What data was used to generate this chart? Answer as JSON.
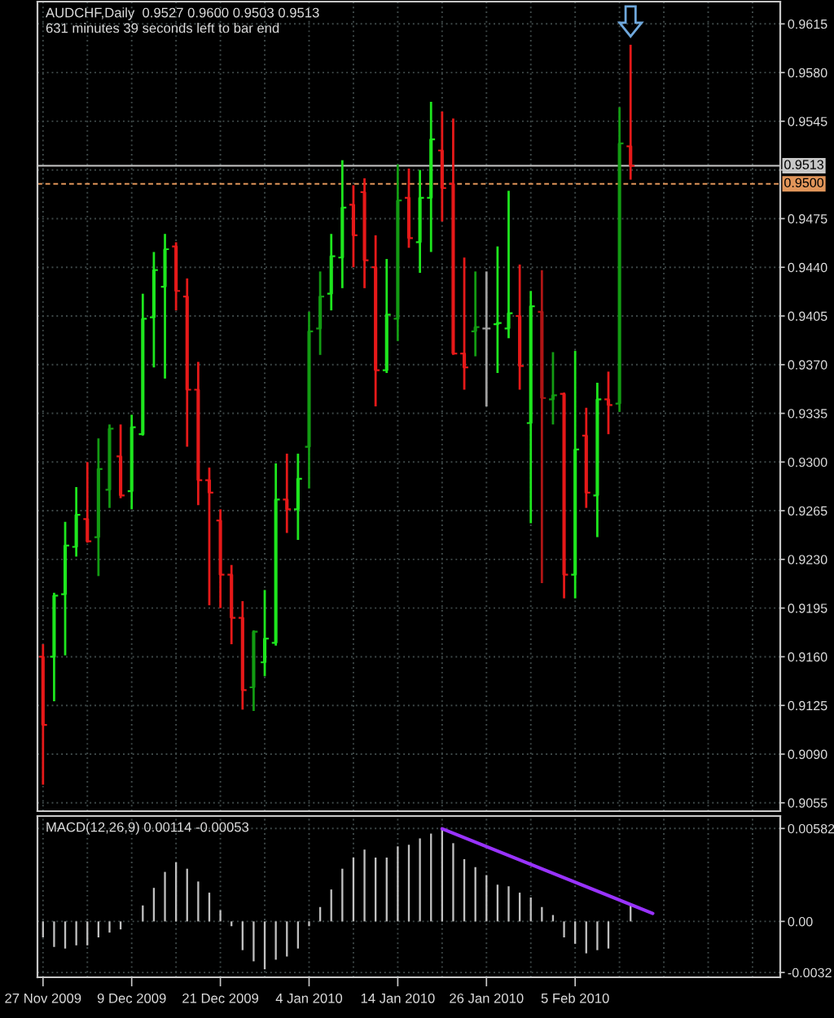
{
  "chart_data": [
    {
      "type": "candlestick",
      "title": "AUDCHF,Daily  0.9527 0.9600 0.9503 0.9513",
      "subtitle": "631 minutes 39 seconds left to bar end",
      "categories": [
        null,
        null,
        null,
        null,
        null,
        null,
        null,
        null,
        null,
        null,
        null,
        null,
        null,
        null,
        null,
        null,
        null,
        null,
        null,
        null,
        null,
        null,
        null,
        null,
        null,
        null,
        null,
        null,
        null,
        null,
        null,
        null,
        null,
        null,
        null,
        null,
        null,
        null,
        null,
        null,
        null,
        null,
        null,
        null,
        null,
        null,
        null,
        null,
        null,
        null,
        null,
        null,
        null,
        null,
        null,
        null,
        null,
        null,
        null,
        null,
        null,
        null,
        null,
        null,
        null,
        null,
        null
      ],
      "ohlc": [
        [
          0.916,
          0.9169,
          0.9068,
          0.9111
        ],
        [
          0.916,
          0.9206,
          0.9128,
          0.9204
        ],
        [
          0.9205,
          0.9257,
          0.9161,
          0.924
        ],
        [
          0.9239,
          0.9282,
          0.9232,
          0.9262
        ],
        [
          0.9259,
          0.93,
          0.9242,
          0.9243
        ],
        [
          0.9246,
          0.9317,
          0.9218,
          0.9295
        ],
        [
          0.928,
          0.9327,
          0.9267,
          0.9324
        ],
        [
          0.9304,
          0.9327,
          0.9274,
          0.9276
        ],
        [
          0.9279,
          0.9334,
          0.9266,
          0.9325
        ],
        [
          0.932,
          0.9421,
          0.9319,
          0.9403
        ],
        [
          0.9404,
          0.9451,
          0.9368,
          0.9438
        ],
        [
          0.9426,
          0.9464,
          0.936,
          0.9453
        ],
        [
          0.9455,
          0.9458,
          0.9409,
          0.9423
        ],
        [
          0.9419,
          0.9432,
          0.9311,
          0.9352
        ],
        [
          0.9352,
          0.9372,
          0.9269,
          0.9287
        ],
        [
          0.9287,
          0.9296,
          0.9197,
          0.9278
        ],
        [
          0.9258,
          0.9266,
          0.9195,
          0.9219
        ],
        [
          0.9219,
          0.9226,
          0.9169,
          0.9188
        ],
        [
          0.9188,
          0.92,
          0.9122,
          0.9136
        ],
        [
          0.9138,
          0.9179,
          0.9121,
          0.9178
        ],
        [
          0.9156,
          0.9208,
          0.9146,
          0.9173
        ],
        [
          0.917,
          0.9299,
          0.9168,
          0.9273
        ],
        [
          0.9273,
          0.9306,
          0.9249,
          0.9266
        ],
        [
          0.9266,
          0.9306,
          0.9244,
          0.9288
        ],
        [
          0.9311,
          0.9408,
          0.9281,
          0.9394
        ],
        [
          0.9396,
          0.9437,
          0.9377,
          0.9419
        ],
        [
          0.9421,
          0.9464,
          0.9409,
          0.9448
        ],
        [
          0.9447,
          0.9517,
          0.9425,
          0.9483
        ],
        [
          0.9485,
          0.9499,
          0.944,
          0.9463
        ],
        [
          0.9494,
          0.9504,
          0.9425,
          0.9445
        ],
        [
          0.944,
          0.9463,
          0.934,
          0.9366
        ],
        [
          0.9366,
          0.9446,
          0.9364,
          0.9406
        ],
        [
          0.9403,
          0.9514,
          0.9387,
          0.9488
        ],
        [
          0.949,
          0.9511,
          0.9454,
          0.9461
        ],
        [
          0.9458,
          0.951,
          0.9436,
          0.949
        ],
        [
          0.949,
          0.9559,
          0.9451,
          0.9532
        ],
        [
          0.9524,
          0.9552,
          0.9473,
          0.9497
        ],
        [
          0.95,
          0.9547,
          0.9377,
          0.9378
        ],
        [
          0.9378,
          0.9447,
          0.9352,
          0.9368
        ],
        [
          0.9394,
          0.9437,
          0.9376,
          0.9397
        ],
        [
          0.9396,
          0.9437,
          0.934,
          0.9396
        ],
        [
          0.9399,
          0.9455,
          0.9364,
          0.94
        ],
        [
          0.9396,
          0.9495,
          0.9389,
          0.9407
        ],
        [
          0.9405,
          0.9442,
          0.9352,
          0.9369
        ],
        [
          0.9328,
          0.9423,
          0.9256,
          0.9412
        ],
        [
          0.9408,
          0.9438,
          0.9213,
          0.9346
        ],
        [
          0.9345,
          0.9379,
          0.9327,
          0.9348
        ],
        [
          0.9349,
          0.935,
          0.9202,
          0.9219
        ],
        [
          0.9219,
          0.938,
          0.9202,
          0.9309
        ],
        [
          0.9319,
          0.9339,
          0.9267,
          0.9278
        ],
        [
          0.9276,
          0.9357,
          0.9246,
          0.9345
        ],
        [
          0.9345,
          0.9365,
          0.932,
          0.9341
        ],
        [
          0.9342,
          0.9555,
          0.9336,
          0.9529
        ],
        [
          0.9527,
          0.96,
          0.9503,
          0.9513
        ],
        null,
        null,
        null,
        null,
        null,
        null,
        null,
        null,
        null,
        null,
        null,
        null,
        null
      ],
      "colors": [
        "#e61919",
        "#1ee61e",
        "#1ee61e",
        "#1ee61e",
        "#e61919",
        "#139b13",
        "#139b13",
        "#e61919",
        "#1ee61e",
        "#1ee61e",
        "#1ee61e",
        "#1ee61e",
        "#e61919",
        "#e61919",
        "#e61919",
        "#e61919",
        "#e61919",
        "#e61919",
        "#e61919",
        "#139b13",
        "#1ee61e",
        "#1ee61e",
        "#e61919",
        "#1ee61e",
        "#139b13",
        "#139b13",
        "#1ee61e",
        "#1ee61e",
        "#e61919",
        "#e61919",
        "#e61919",
        "#1ee61e",
        "#139b13",
        "#e61919",
        "#1ee61e",
        "#1ee61e",
        "#e61919",
        "#e61919",
        "#e61919",
        "#139b13",
        "#a0a0a0",
        "#1ee61e",
        "#1ee61e",
        "#e61919",
        "#1ee61e",
        "#b01515",
        "#139b13",
        "#e61919",
        "#1ee61e",
        "#e61919",
        "#1ee61e",
        "#e61919",
        "#139b13",
        "#e61919",
        null,
        null,
        null,
        null,
        null,
        null,
        null,
        null,
        null,
        null,
        null,
        null,
        null
      ],
      "ylim": [
        0.9049,
        0.9631
      ],
      "yticks": [
        0.9615,
        {
          "value": 0.958,
          "label": "0.9580"
        },
        0.9545,
        {
          "value": 0.951,
          "label": null
        },
        0.9475,
        {
          "value": 0.944,
          "label": "0.9440"
        },
        0.9405,
        {
          "value": 0.937,
          "label": "0.9370"
        },
        0.9335,
        {
          "value": 0.93,
          "label": "0.9300"
        },
        0.9265,
        {
          "value": 0.923,
          "label": "0.9230"
        },
        0.9195,
        {
          "value": 0.916,
          "label": "0.9160"
        },
        0.9125,
        {
          "value": 0.909,
          "label": "0.9090"
        },
        0.9055
      ],
      "tick_labels": "y",
      "grid": true,
      "ref_lines": [
        {
          "axis": "y",
          "value": 0.9513,
          "label": "0.9513",
          "color": "#c8c8c8",
          "line_style": "solid"
        },
        {
          "axis": "y",
          "value": 0.95,
          "label": "0.9500",
          "color": "#e0955a",
          "line_style": "dashed"
        }
      ]
    },
    {
      "type": "bar",
      "title": "MACD(12,26,9) 0.00114 -0.00053",
      "categories": [
        "27 Nov 2009",
        null,
        null,
        null,
        null,
        null,
        null,
        null,
        "9 Dec 2009",
        null,
        null,
        null,
        null,
        null,
        null,
        null,
        "21 Dec 2009",
        null,
        null,
        null,
        null,
        null,
        null,
        null,
        "4 Jan 2010",
        null,
        null,
        null,
        null,
        null,
        null,
        null,
        "14 Jan 2010",
        null,
        null,
        null,
        null,
        null,
        null,
        null,
        "26 Jan 2010",
        null,
        null,
        null,
        null,
        null,
        null,
        null,
        "5 Feb 2010",
        null,
        null,
        null,
        null,
        null,
        null,
        null,
        null,
        null,
        null,
        null,
        null,
        null,
        null,
        null,
        null,
        null,
        null
      ],
      "series": [
        {
          "type": "bar",
          "color": "#c0c0c0",
          "values": [
            -0.001,
            -0.0016,
            -0.0017,
            -0.0015,
            -0.0015,
            -0.001,
            -0.0007,
            -0.0005,
            0,
            0.001,
            0.0021,
            0.0031,
            0.0037,
            0.0033,
            0.0025,
            0.0018,
            0.0007,
            -0.0003,
            -0.0018,
            -0.0025,
            -0.003,
            -0.0024,
            -0.0022,
            -0.0017,
            -0.0003,
            0.0009,
            0.002,
            0.0033,
            0.004,
            0.0045,
            0.004,
            0.004,
            0.0047,
            0.0048,
            0.0052,
            0.0055,
            0.0058,
            0.0049,
            0.0039,
            0.0034,
            0.0029,
            0.0023,
            0.0022,
            0.0018,
            0.0015,
            0.0009,
            0.0004,
            -0.001,
            -0.0014,
            -0.002,
            -0.0018,
            -0.0017,
            0,
            0.0011,
            null,
            null,
            null,
            null,
            null,
            null,
            null,
            null,
            null,
            null,
            null,
            null,
            null
          ]
        },
        {
          "type": "line",
          "color": "#9933ff",
          "values": [
            null,
            null,
            null,
            null,
            null,
            null,
            null,
            null,
            null,
            null,
            null,
            null,
            null,
            null,
            null,
            null,
            null,
            null,
            null,
            null,
            null,
            null,
            null,
            null,
            null,
            null,
            null,
            null,
            null,
            null,
            null,
            null,
            null,
            null,
            null,
            null,
            0.0058,
            null,
            null,
            null,
            null,
            null,
            null,
            null,
            null,
            null,
            null,
            null,
            null,
            null,
            null,
            null,
            null,
            null,
            null,
            0.0005,
            null,
            null,
            null,
            null,
            null,
            null,
            null,
            null,
            null,
            null,
            null
          ]
        }
      ],
      "ylim": [
        -0.0035,
        0.0066
      ],
      "yticks": [
        0.00582,
        {
          "value": 0,
          "label": "0.00"
        },
        -0.0032
      ],
      "grid": true
    }
  ]
}
